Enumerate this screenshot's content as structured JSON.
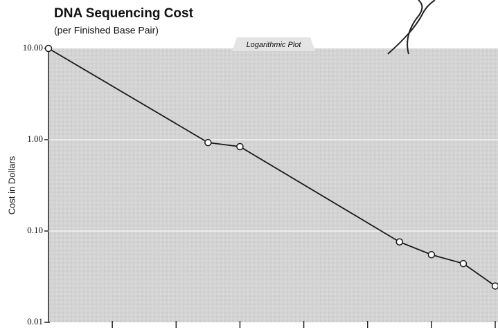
{
  "chart_data": {
    "type": "line",
    "title": "DNA Sequencing Cost",
    "subtitle": "(per Finished Base Pair)",
    "annotation": "Logarithmic Plot",
    "y_label": "Cost in Dollars",
    "log_y": true,
    "grid": true,
    "x": [
      0,
      2.5,
      3,
      5.5,
      6,
      6.5,
      7
    ],
    "series": [
      {
        "color": "#1a1a1a",
        "values": [
          10,
          0.93,
          0.84,
          0.076,
          0.055,
          0.044,
          0.025
        ]
      }
    ],
    "xlim": [
      0,
      7
    ],
    "xticks": [
      1,
      2,
      3,
      4,
      5,
      6,
      7
    ],
    "ylim": [
      0.01,
      10
    ],
    "yticks": [
      {
        "value": 10,
        "label": "10.00"
      },
      {
        "value": 1,
        "label": "1.00"
      },
      {
        "value": 0.1,
        "label": "0.10"
      },
      {
        "value": 0.01,
        "label": "0.01"
      }
    ]
  }
}
